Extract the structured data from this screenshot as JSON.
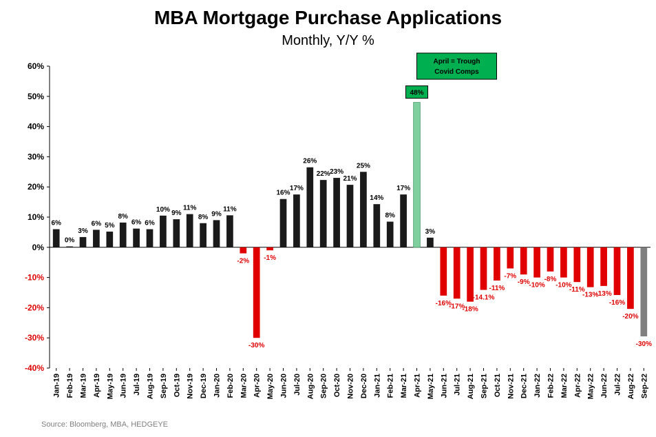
{
  "chart_data": {
    "type": "bar",
    "title": "MBA Mortgage Purchase Applications",
    "subtitle": "Monthly, Y/Y %",
    "source": "Source: Bloomberg, MBA, HEDGEYE",
    "ylim": [
      -40,
      60
    ],
    "yticks": [
      "60%",
      "50%",
      "40%",
      "30%",
      "20%",
      "10%",
      "0%",
      "-10%",
      "-20%",
      "-30%",
      "-40%"
    ],
    "ytick_values": [
      60,
      50,
      40,
      30,
      20,
      10,
      0,
      -10,
      -20,
      -30,
      -40
    ],
    "grid": false,
    "annotation": {
      "text_line1": "April = Trough",
      "text_line2": "Covid Comps",
      "color": "#00b050",
      "category": "Apr-21"
    },
    "colors": {
      "positive": "#1a1a1a",
      "negative": "#e00000",
      "highlight": "#7fcf9f",
      "latest": "#808080",
      "negative_label": "#e00000",
      "positive_label": "#000000"
    },
    "categories": [
      "Jan-19",
      "Feb-19",
      "Mar-19",
      "Apr-19",
      "May-19",
      "Jun-19",
      "Jul-19",
      "Aug-19",
      "Sep-19",
      "Oct-19",
      "Nov-19",
      "Dec-19",
      "Jan-20",
      "Feb-20",
      "Mar-20",
      "Apr-20",
      "May-20",
      "Jun-20",
      "Jul-20",
      "Aug-20",
      "Sep-20",
      "Oct-20",
      "Nov-20",
      "Dec-20",
      "Jan-21",
      "Feb-21",
      "Mar-21",
      "Apr-21",
      "May-21",
      "Jun-21",
      "Jul-21",
      "Aug-21",
      "Sep-21",
      "Oct-21",
      "Nov-21",
      "Dec-21",
      "Jan-22",
      "Feb-22",
      "Mar-22",
      "Apr-22",
      "May-22",
      "Jun-22",
      "Jul-22",
      "Aug-22",
      "Sep-22"
    ],
    "values": [
      6,
      0.3,
      3.4,
      5.8,
      5.2,
      8.2,
      6.2,
      6,
      10.5,
      9.3,
      11,
      8,
      9,
      10.6,
      -2,
      -30,
      -1,
      16,
      17.5,
      26.5,
      22.3,
      23,
      20.7,
      25,
      14.3,
      8.5,
      17.5,
      48,
      3.2,
      -16,
      -17,
      -18,
      -14.1,
      -11,
      -7,
      -9,
      -10,
      -8,
      -10,
      -11.5,
      -13.2,
      -12.8,
      -15.8,
      -20.4,
      -29.5
    ],
    "data_labels": [
      "6%",
      "0%",
      "3%",
      "6%",
      "5%",
      "8%",
      "6%",
      "6%",
      "10%",
      "9%",
      "11%",
      "8%",
      "9%",
      "11%",
      "-2%",
      "-30%",
      "-1%",
      "16%",
      "17%",
      "26%",
      "22%",
      "23%",
      "21%",
      "25%",
      "14%",
      "8%",
      "17%",
      "48%",
      "3%",
      "-16%",
      "-17%",
      "-18%",
      "-14.1%",
      "-11%",
      "-7%",
      "-9%",
      "-10%",
      "-8%",
      "-10%",
      "-11%",
      "-13%",
      "-13%",
      "-16%",
      "-20%",
      "-30%"
    ],
    "bar_styles": [
      "pos",
      "pos",
      "pos",
      "pos",
      "pos",
      "pos",
      "pos",
      "pos",
      "pos",
      "pos",
      "pos",
      "pos",
      "pos",
      "pos",
      "neg",
      "neg",
      "neg",
      "pos",
      "pos",
      "pos",
      "pos",
      "pos",
      "pos",
      "pos",
      "pos",
      "pos",
      "pos",
      "highlight",
      "pos",
      "neg",
      "neg",
      "neg",
      "neg",
      "neg",
      "neg",
      "neg",
      "neg",
      "neg",
      "neg",
      "neg",
      "neg",
      "neg",
      "neg",
      "neg",
      "latest"
    ]
  }
}
